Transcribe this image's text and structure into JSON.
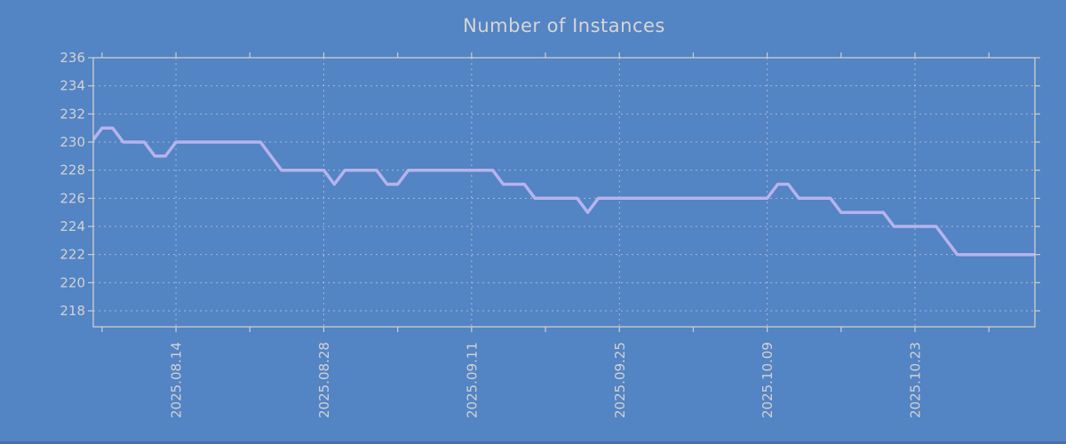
{
  "page": {
    "background": "#5384c4",
    "text_color": "#d2d2d2",
    "axis_color": "#cfcfcf",
    "grid_color": "#d8d8d8"
  },
  "chart_data": {
    "type": "line",
    "title": "Number of Instances",
    "xlabel": "",
    "ylabel": "",
    "grid": true,
    "legend": "none",
    "ylim": [
      216.9,
      236
    ],
    "y_axis": {
      "ticks": [
        236,
        234,
        232,
        230,
        228,
        226,
        224,
        222,
        220,
        218
      ]
    },
    "x_axis": {
      "labels": [
        "2025.08.14",
        "2025.08.28",
        "2025.09.11",
        "2025.09.25",
        "2025.10.09",
        "2025.10.23"
      ],
      "label_days": [
        8,
        22,
        36,
        50,
        64,
        78
      ],
      "minor_tick_first_day": 1,
      "minor_tick_interval_days": 7,
      "minor_tick_last_day": 85
    },
    "series": [
      {
        "name": "instances",
        "color": "#b7b3ec",
        "start_date": "2025.08.06",
        "end_date": "2025.11.03",
        "interval_days": 1,
        "values": [
          230,
          231,
          231,
          230,
          230,
          230,
          229,
          229,
          230,
          230,
          230,
          230,
          230,
          230,
          230,
          230,
          230,
          229,
          228,
          228,
          228,
          228,
          228,
          227,
          228,
          228,
          228,
          228,
          227,
          227,
          228,
          228,
          228,
          228,
          228,
          228,
          228,
          228,
          228,
          227,
          227,
          227,
          226,
          226,
          226,
          226,
          226,
          225,
          226,
          226,
          226,
          226,
          226,
          226,
          226,
          226,
          226,
          226,
          226,
          226,
          226,
          226,
          226,
          226,
          226,
          227,
          227,
          226,
          226,
          226,
          226,
          225,
          225,
          225,
          225,
          225,
          224,
          224,
          224,
          224,
          224,
          223,
          222,
          222,
          222,
          222,
          222,
          222,
          222,
          222
        ]
      }
    ]
  }
}
